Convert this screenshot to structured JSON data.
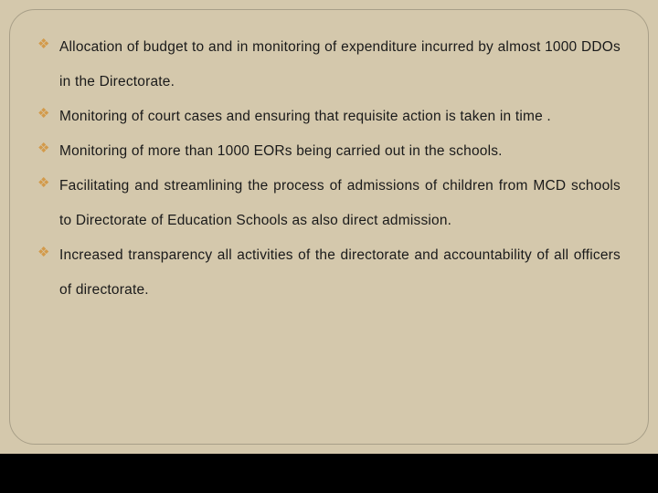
{
  "slide": {
    "background_color": "#d4c8ac",
    "frame_border_color": "#a89f88",
    "frame_border_radius": 28,
    "outer_background": "#000000",
    "bullet_marker": "❖",
    "bullet_color": "#d39a4a",
    "text_color": "#1a1a1a",
    "font_family": "Verdana",
    "font_size_pt": 12,
    "line_height": 38,
    "items": [
      "Allocation of budget to and in monitoring of expenditure incurred by almost 1000 DDOs in the Directorate.",
      "Monitoring of court cases and ensuring that requisite action is taken in time .",
      "Monitoring of more than 1000 EORs  being carried out in the schools.",
      "Facilitating and streamlining the process of admissions of children from MCD schools to Directorate of Education Schools as also direct admission.",
      "Increased transparency all activities of the directorate and accountability of all officers of directorate."
    ]
  }
}
